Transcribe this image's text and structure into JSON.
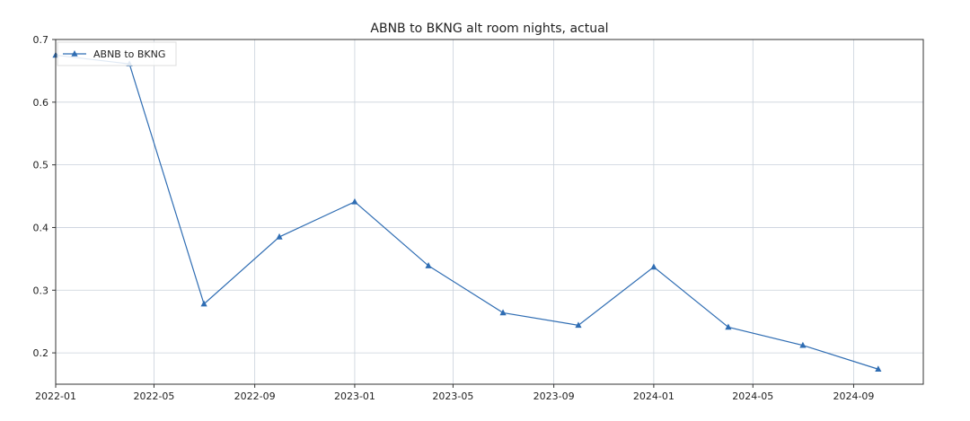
{
  "chart_data": {
    "type": "line",
    "title": "ABNB to BKNG alt room nights, actual",
    "xlabel": "",
    "ylabel": "",
    "x": [
      "2022-01-01",
      "2022-04-01",
      "2022-07-01",
      "2022-10-01",
      "2023-01-01",
      "2023-04-01",
      "2023-07-01",
      "2023-10-01",
      "2024-01-01",
      "2024-04-01",
      "2024-07-01",
      "2024-10-01"
    ],
    "series": [
      {
        "name": "ABNB to BKNG",
        "values": [
          0.675,
          0.661,
          0.278,
          0.385,
          0.441,
          0.339,
          0.264,
          0.244,
          0.337,
          0.241,
          0.212,
          0.174
        ],
        "color": "#2f6db3",
        "marker": "triangle-up"
      }
    ],
    "xlim": [
      "2022-01-01",
      "2024-11-25"
    ],
    "ylim": [
      0.15,
      0.7
    ],
    "x_ticks": [
      "2022-01",
      "2022-05",
      "2022-09",
      "2023-01",
      "2023-05",
      "2023-09",
      "2024-01",
      "2024-05",
      "2024-09"
    ],
    "y_ticks": [
      0.2,
      0.3,
      0.4,
      0.5,
      0.6,
      0.7
    ],
    "grid": true,
    "legend_position": "top-left"
  }
}
